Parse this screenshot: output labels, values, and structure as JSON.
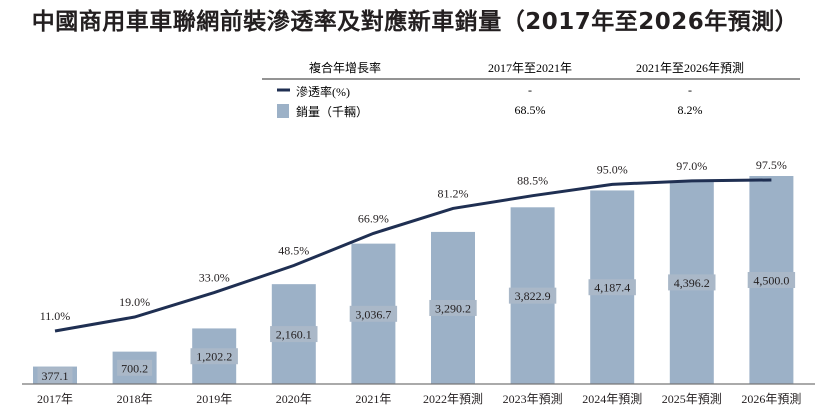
{
  "title": "中國商用車車聯網前裝滲透率及對應新車銷量（2017年至2026年預測）",
  "cagr_table": {
    "header": [
      "複合年增長率",
      "2017年至2021年",
      "2021年至2026年預測"
    ],
    "rows": [
      {
        "label": "滲透率(%)",
        "values": [
          "-",
          "-"
        ],
        "legend": "line"
      },
      {
        "label": "銷量（千輛）",
        "values": [
          "68.5%",
          "8.2%"
        ],
        "legend": "bar"
      }
    ]
  },
  "colors": {
    "bar": "#9cb1c7",
    "line": "#1f2f52",
    "text": "#231f20",
    "label_bg": "#aab8c8"
  },
  "chart_data": {
    "type": "bar+line",
    "title": "中國商用車車聯網前裝滲透率及對應新車銷量（2017年至2026年預測）",
    "categories": [
      "2017年",
      "2018年",
      "2019年",
      "2020年",
      "2021年",
      "2022年預測",
      "2023年預測",
      "2024年預測",
      "2025年預測",
      "2026年預測"
    ],
    "series": [
      {
        "name": "銷量（千輛）",
        "type": "bar",
        "values": [
          377.1,
          700.2,
          1202.2,
          2160.1,
          3036.7,
          3290.2,
          3822.9,
          4187.4,
          4396.2,
          4500.0
        ],
        "labels": [
          "377.1",
          "700.2",
          "1,202.2",
          "2,160.1",
          "3,036.7",
          "3,290.2",
          "3,822.9",
          "4,187.4",
          "4,396.2",
          "4,500.0"
        ]
      },
      {
        "name": "滲透率(%)",
        "type": "line",
        "values": [
          11.0,
          19.0,
          33.0,
          48.5,
          66.9,
          81.2,
          88.5,
          95.0,
          97.0,
          97.5
        ],
        "labels": [
          "11.0%",
          "19.0%",
          "33.0%",
          "48.5%",
          "66.9%",
          "81.2%",
          "88.5%",
          "95.0%",
          "97.0%",
          "97.5%"
        ]
      }
    ],
    "grid": false,
    "legend": "top-right"
  }
}
